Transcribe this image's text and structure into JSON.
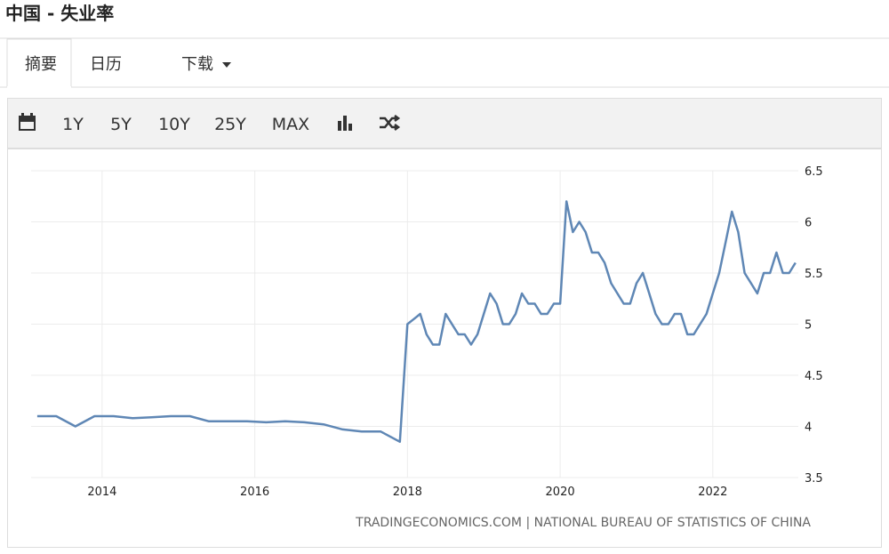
{
  "header": {
    "title": "中国 - 失业率"
  },
  "tabs": [
    "摘要",
    "日历",
    "下载"
  ],
  "toolbar": [
    "1Y",
    "5Y",
    "10Y",
    "25Y",
    "MAX"
  ],
  "chart_data": {
    "type": "line",
    "source": "TRADINGECONOMICS.COM | NATIONAL BUREAU OF STATISTICS OF CHINA",
    "x": [
      2013.15,
      2013.4,
      2013.65,
      2013.9,
      2014.15,
      2014.4,
      2014.65,
      2014.9,
      2015.15,
      2015.4,
      2015.65,
      2015.9,
      2016.15,
      2016.4,
      2016.65,
      2016.9,
      2017.15,
      2017.4,
      2017.65,
      2017.9,
      2018.0,
      2018.083,
      2018.167,
      2018.25,
      2018.333,
      2018.417,
      2018.5,
      2018.583,
      2018.667,
      2018.75,
      2018.833,
      2018.917,
      2019.0,
      2019.083,
      2019.167,
      2019.25,
      2019.333,
      2019.417,
      2019.5,
      2019.583,
      2019.667,
      2019.75,
      2019.833,
      2019.917,
      2020.0,
      2020.083,
      2020.167,
      2020.25,
      2020.333,
      2020.417,
      2020.5,
      2020.583,
      2020.667,
      2020.75,
      2020.833,
      2020.917,
      2021.0,
      2021.083,
      2021.167,
      2021.25,
      2021.333,
      2021.417,
      2021.5,
      2021.583,
      2021.667,
      2021.75,
      2021.833,
      2021.917,
      2022.0,
      2022.083,
      2022.167,
      2022.25,
      2022.333,
      2022.417,
      2022.5,
      2022.583,
      2022.667,
      2022.75,
      2022.833,
      2022.917,
      2023.0,
      2023.083
    ],
    "series": [
      {
        "color": "#5f87b5",
        "values": [
          4.1,
          4.1,
          4.0,
          4.1,
          4.1,
          4.08,
          4.09,
          4.1,
          4.1,
          4.05,
          4.05,
          4.05,
          4.04,
          4.05,
          4.04,
          4.02,
          3.97,
          3.95,
          3.95,
          3.85,
          5.0,
          5.05,
          5.1,
          4.9,
          4.8,
          4.8,
          5.1,
          5.0,
          4.9,
          4.9,
          4.8,
          4.9,
          5.1,
          5.3,
          5.2,
          5.0,
          5.0,
          5.1,
          5.3,
          5.2,
          5.2,
          5.1,
          5.1,
          5.2,
          5.2,
          6.2,
          5.9,
          6.0,
          5.9,
          5.7,
          5.7,
          5.6,
          5.4,
          5.3,
          5.2,
          5.2,
          5.4,
          5.5,
          5.3,
          5.1,
          5.0,
          5.0,
          5.1,
          5.1,
          4.9,
          4.9,
          5.0,
          5.1,
          5.3,
          5.5,
          5.8,
          6.1,
          5.9,
          5.5,
          5.4,
          5.3,
          5.5,
          5.5,
          5.7,
          5.5,
          5.5,
          5.6
        ]
      }
    ],
    "xlim": [
      2013.07,
      2023.12
    ],
    "xticks": [
      2014,
      2016,
      2018,
      2020,
      2022
    ],
    "ylim": [
      3.5,
      6.5
    ],
    "yticks": [
      3.5,
      4,
      4.5,
      5,
      5.5,
      6,
      6.5
    ],
    "grid": true
  }
}
